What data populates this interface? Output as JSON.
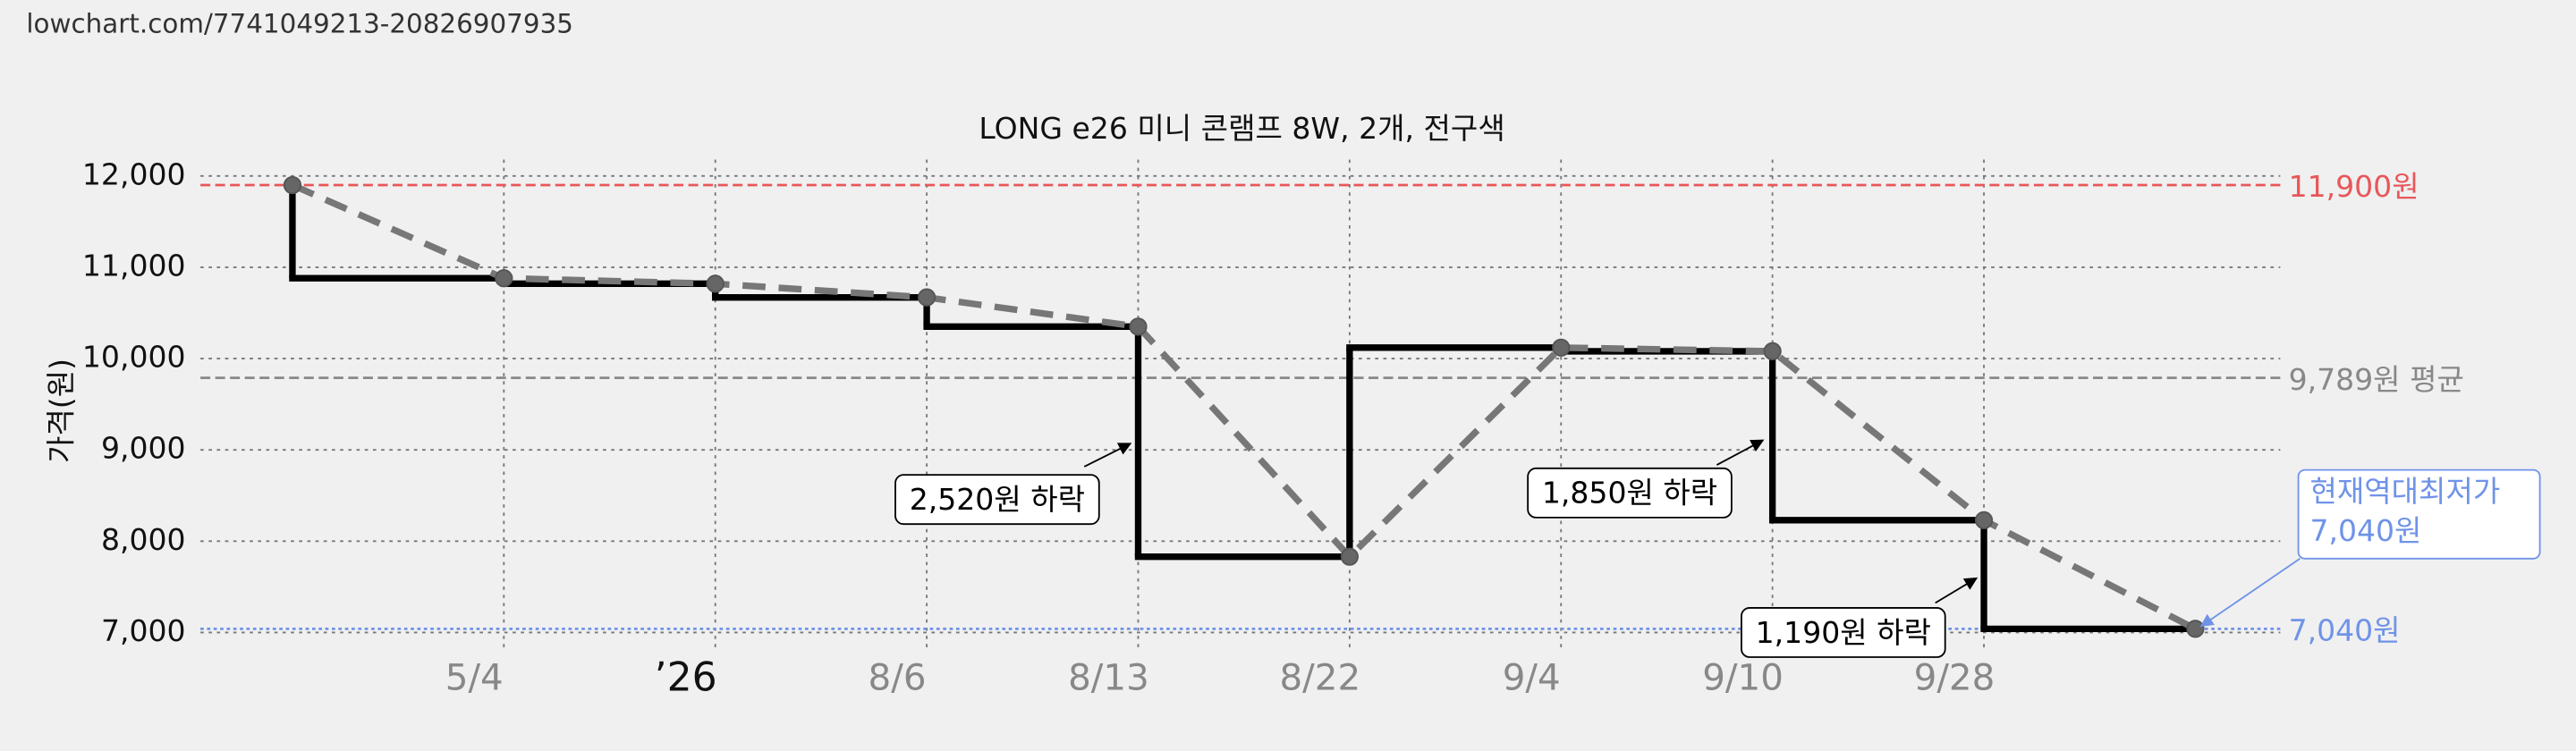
{
  "source_url": "lowchart.com/7741049213-20826907935",
  "chart_data": {
    "type": "step-line",
    "title": "LONG e26 미니 콘램프 8W, 2개, 전구색",
    "y_label": "가격(원)",
    "categories": [
      null,
      "5/4",
      "’26",
      "8/6",
      "8/13",
      "8/22",
      "9/4",
      "9/10",
      "9/28",
      null
    ],
    "values": [
      11900,
      10880,
      10820,
      10670,
      10350,
      7830,
      10120,
      10080,
      8230,
      7040
    ],
    "color": "#000000",
    "trend_color": "#777777",
    "ylim": [
      7000,
      12000
    ],
    "yticks": [
      {
        "value": 7000,
        "label": "7,000"
      },
      {
        "value": 8000,
        "label": "8,000"
      },
      {
        "value": 9000,
        "label": "9,000"
      },
      {
        "value": 10000,
        "label": "10,000"
      },
      {
        "value": 11000,
        "label": "11,000"
      },
      {
        "value": 12000,
        "label": "12,000"
      }
    ],
    "grid": true,
    "reference_lines": [
      {
        "value": 11900,
        "label": "11,900원",
        "color": "#e8575a"
      },
      {
        "value": 9789,
        "label": "9,789원 평균",
        "color": "#888888"
      },
      {
        "value": 7040,
        "label": "7,040원",
        "color": "#6f93e8"
      }
    ],
    "annotations": [
      "2,520원 하락",
      "1,850원 하락",
      "1,190원 하락"
    ],
    "callout": [
      "현재역대최저가",
      "7,040원"
    ]
  }
}
